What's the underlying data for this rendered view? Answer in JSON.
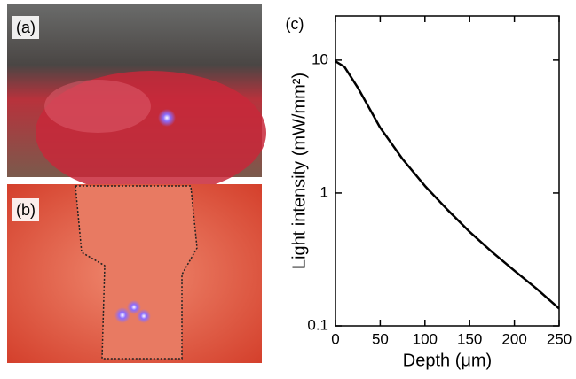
{
  "panels": {
    "a": {
      "label": "(a)"
    },
    "b": {
      "label": "(b)"
    }
  },
  "chart_data": {
    "type": "line",
    "panel_label": "(c)",
    "xlabel": "Depth (μm)",
    "ylabel": "Light intensity (mW/mm²)",
    "x": [
      0,
      10,
      25,
      50,
      75,
      100,
      125,
      150,
      175,
      200,
      225,
      250
    ],
    "values": [
      9.8,
      8.9,
      6.2,
      3.1,
      1.8,
      1.13,
      0.75,
      0.51,
      0.36,
      0.26,
      0.19,
      0.135
    ],
    "color": "#000000",
    "xlim": [
      0,
      250
    ],
    "xticks": [
      0,
      50,
      100,
      150,
      200,
      250
    ],
    "ylim": [
      0.1,
      21.5
    ],
    "yticks": [
      0.1,
      1,
      10
    ],
    "yscale": "log",
    "grid": false
  }
}
